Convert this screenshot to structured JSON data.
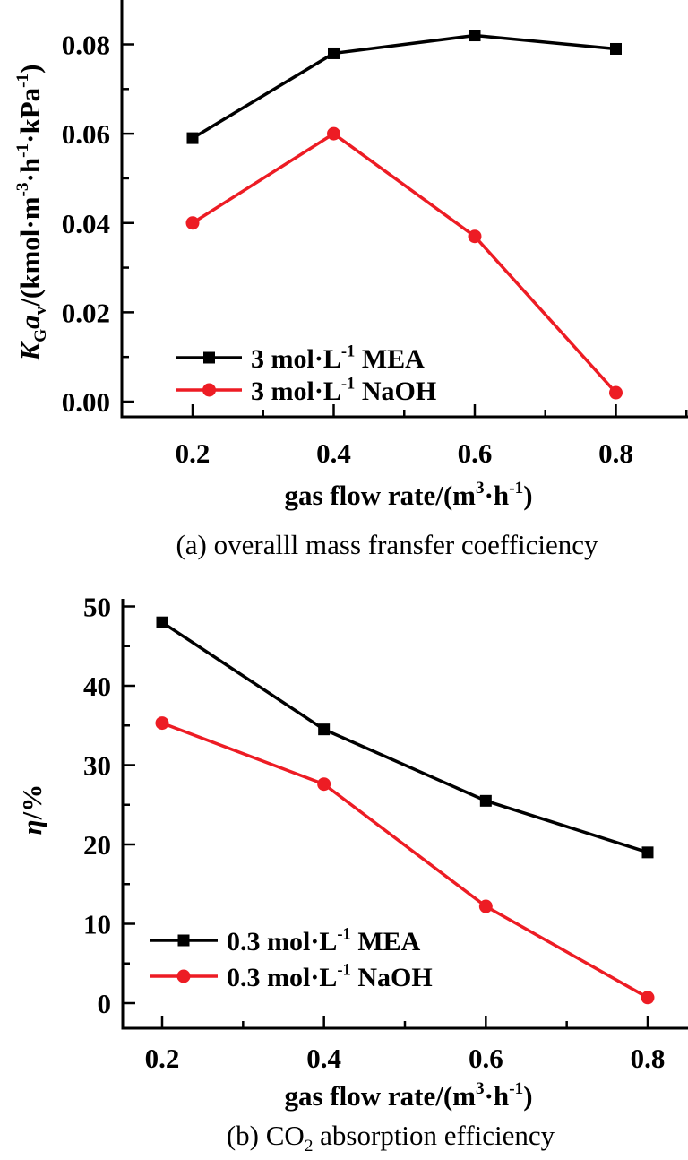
{
  "figure": {
    "background": "#ffffff",
    "series_colors": {
      "mea": "#000000",
      "naoh": "#ED1C24"
    }
  },
  "chart_data": [
    {
      "id": "a",
      "type": "line",
      "title": "(a) overalll mass fransfer coefficiency",
      "caption_runs": [
        {
          "t": "(a) overalll mass fransfer coefficiency"
        }
      ],
      "xlabel": "gas flow rate/(m³·h⁻¹)",
      "xlabel_runs": [
        {
          "t": "gas flow rate/(m"
        },
        {
          "t": "3",
          "s": "sup"
        },
        {
          "t": "·h"
        },
        {
          "t": "-1",
          "s": "sup"
        },
        {
          "t": ")"
        }
      ],
      "ylabel": "KGav/(kmol·m⁻³·h⁻¹·kPa⁻¹)",
      "ylabel_runs": [
        {
          "t": "K",
          "s": "i"
        },
        {
          "t": "G",
          "s": "sub"
        },
        {
          "t": "a",
          "s": "i"
        },
        {
          "t": "v",
          "s": "sub"
        },
        {
          "t": "/(kmol·m"
        },
        {
          "t": "-3",
          "s": "sup"
        },
        {
          "t": "·h"
        },
        {
          "t": "-1",
          "s": "sup"
        },
        {
          "t": "·kPa"
        },
        {
          "t": "-1",
          "s": "sup"
        },
        {
          "t": ")"
        }
      ],
      "x": [
        0.2,
        0.4,
        0.6,
        0.8
      ],
      "x_ticks": {
        "values": [
          0.2,
          0.4,
          0.6,
          0.8
        ],
        "labels": [
          "0.2",
          "0.4",
          "0.6",
          "0.8"
        ],
        "minor": [
          0.3,
          0.5,
          0.7,
          0.9
        ]
      },
      "y_ticks": {
        "values": [
          0,
          0.02,
          0.04,
          0.06,
          0.08
        ],
        "labels": [
          "0.00",
          "0.02",
          "0.04",
          "0.06",
          "0.08"
        ],
        "minor": [
          0.01,
          0.03,
          0.05,
          0.07
        ]
      },
      "xlim": [
        0.1,
        0.9
      ],
      "ylim": [
        -0.0035,
        0.0935
      ],
      "grid": false,
      "legend_position": "lower-left",
      "series": [
        {
          "name": "3 mol·L⁻¹ MEA",
          "name_runs": [
            {
              "t": "3 mol·L"
            },
            {
              "t": "-1",
              "s": "sup"
            },
            {
              "t": " MEA"
            }
          ],
          "color": "#000000",
          "marker": "square",
          "values": [
            0.059,
            0.078,
            0.082,
            0.079
          ]
        },
        {
          "name": "3 mol·L⁻¹ NaOH",
          "name_runs": [
            {
              "t": "3 mol·L"
            },
            {
              "t": "-1",
              "s": "sup"
            },
            {
              "t": " NaOH"
            }
          ],
          "color": "#ED1C24",
          "marker": "circle",
          "values": [
            0.04,
            0.06,
            0.037,
            0.002
          ]
        }
      ]
    },
    {
      "id": "b",
      "type": "line",
      "title": "(b) CO2 absorption efficiency",
      "caption_runs": [
        {
          "t": "(b) CO"
        },
        {
          "t": "2",
          "s": "sub"
        },
        {
          "t": " absorption efficiency"
        }
      ],
      "xlabel": "gas flow rate/(m³·h⁻¹)",
      "xlabel_runs": [
        {
          "t": "gas flow rate/(m"
        },
        {
          "t": "3",
          "s": "sup"
        },
        {
          "t": "·h"
        },
        {
          "t": "-1",
          "s": "sup"
        },
        {
          "t": ")"
        }
      ],
      "ylabel": "η/%",
      "ylabel_runs": [
        {
          "t": "η",
          "s": "i"
        },
        {
          "t": "/%"
        }
      ],
      "x": [
        0.2,
        0.4,
        0.6,
        0.8
      ],
      "x_ticks": {
        "values": [
          0.2,
          0.4,
          0.6,
          0.8
        ],
        "labels": [
          "0.2",
          "0.4",
          "0.6",
          "0.8"
        ],
        "minor": [
          0.3,
          0.5,
          0.7,
          0.9
        ]
      },
      "y_ticks": {
        "values": [
          0,
          10,
          20,
          30,
          40,
          50
        ],
        "labels": [
          "0",
          "10",
          "20",
          "30",
          "40",
          "50"
        ],
        "minor": [
          5,
          15,
          25,
          35,
          45
        ]
      },
      "xlim": [
        0.1,
        0.9
      ],
      "ylim": [
        -3,
        52
      ],
      "grid": false,
      "legend_position": "lower-left",
      "series": [
        {
          "name": "0.3 mol·L⁻¹ MEA",
          "name_runs": [
            {
              "t": "0.3 mol·L"
            },
            {
              "t": "-1",
              "s": "sup"
            },
            {
              "t": " MEA"
            }
          ],
          "color": "#000000",
          "marker": "square",
          "values": [
            48,
            34.5,
            25.5,
            19
          ]
        },
        {
          "name": "0.3 mol·L⁻¹ NaOH",
          "name_runs": [
            {
              "t": "0.3 mol·L"
            },
            {
              "t": "-1",
              "s": "sup"
            },
            {
              "t": " NaOH"
            }
          ],
          "color": "#ED1C24",
          "marker": "circle",
          "values": [
            35.3,
            27.6,
            12.2,
            0.7
          ]
        }
      ]
    }
  ]
}
